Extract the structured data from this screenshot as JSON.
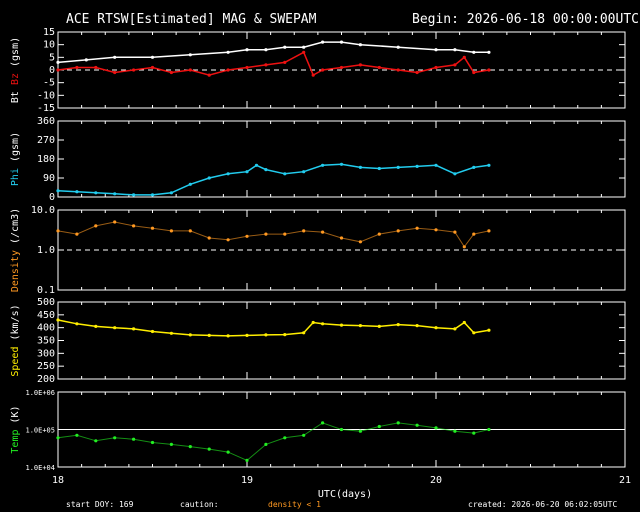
{
  "header": {
    "title": "ACE RTSW[Estimated] MAG & SWEPAM",
    "begin": "Begin: 2026-06-18 00:00:00UTC"
  },
  "footer": {
    "start_doy": "start DOY: 169",
    "caution": "caution:",
    "density_note": "density < 1",
    "created": "created: 2026-06-20 06:02:05UTC"
  },
  "colors": {
    "bt": "#ffffff",
    "bz": "#ee1111",
    "phi": "#22ccee",
    "density": "#ff9922",
    "speed": "#ffee00",
    "temp": "#22ee22",
    "axis": "#ffffff"
  },
  "chart_data": [
    {
      "type": "line",
      "panel": "mag",
      "ylabel_parts": [
        [
          "Bt ",
          "#ffffff"
        ],
        [
          "Bz",
          "#ee1111"
        ],
        [
          " (gsm)",
          "#ffffff"
        ]
      ],
      "ylim": [
        -15,
        15
      ],
      "yticks": [
        15,
        10,
        5,
        0,
        -5,
        -10,
        -15
      ],
      "reference_line": 0,
      "series": [
        {
          "name": "Bt",
          "color": "#ffffff",
          "x": [
            18.0,
            18.15,
            18.3,
            18.5,
            18.7,
            18.9,
            19.0,
            19.1,
            19.2,
            19.3,
            19.4,
            19.5,
            19.6,
            19.8,
            20.0,
            20.1,
            20.2,
            20.28
          ],
          "y": [
            3,
            4,
            5,
            5,
            6,
            7,
            8,
            8,
            9,
            9,
            11,
            11,
            10,
            9,
            8,
            8,
            7,
            7
          ]
        },
        {
          "name": "Bz",
          "color": "#ee1111",
          "x": [
            18.0,
            18.1,
            18.2,
            18.3,
            18.4,
            18.5,
            18.6,
            18.7,
            18.8,
            18.9,
            19.0,
            19.1,
            19.2,
            19.3,
            19.35,
            19.4,
            19.5,
            19.6,
            19.7,
            19.8,
            19.9,
            20.0,
            20.1,
            20.15,
            20.2,
            20.28
          ],
          "y": [
            0,
            1,
            1,
            -1,
            0,
            1,
            -1,
            0,
            -2,
            0,
            1,
            2,
            3,
            7,
            -2,
            0,
            1,
            2,
            1,
            0,
            -1,
            1,
            2,
            5,
            -1,
            0
          ]
        }
      ]
    },
    {
      "type": "line",
      "panel": "phi",
      "ylabel_parts": [
        [
          "Phi",
          "#22ccee"
        ],
        [
          " (gsm)",
          "#ffffff"
        ]
      ],
      "ylim": [
        0,
        360
      ],
      "yticks": [
        360,
        270,
        180,
        90,
        0
      ],
      "series": [
        {
          "name": "Phi",
          "color": "#22ccee",
          "x": [
            18.0,
            18.1,
            18.2,
            18.3,
            18.4,
            18.5,
            18.6,
            18.7,
            18.8,
            18.9,
            19.0,
            19.05,
            19.1,
            19.2,
            19.3,
            19.4,
            19.5,
            19.6,
            19.7,
            19.8,
            19.9,
            20.0,
            20.1,
            20.2,
            20.28
          ],
          "y": [
            30,
            25,
            20,
            15,
            10,
            10,
            20,
            60,
            90,
            110,
            120,
            150,
            130,
            110,
            120,
            150,
            155,
            140,
            135,
            140,
            145,
            150,
            110,
            140,
            150
          ]
        }
      ]
    },
    {
      "type": "scatter",
      "panel": "density",
      "ylabel_parts": [
        [
          "Density",
          "#ff9922"
        ],
        [
          " (/cm3)",
          "#ffffff"
        ]
      ],
      "ylim": [
        0.1,
        10.0
      ],
      "log": true,
      "yticks": [
        10.0,
        1.0,
        0.1
      ],
      "ytick_labels": [
        "10.0",
        "1.0",
        "0.1"
      ],
      "reference_line": 1.0,
      "series": [
        {
          "name": "Density",
          "color": "#ff9922",
          "x": [
            18.0,
            18.1,
            18.2,
            18.3,
            18.4,
            18.5,
            18.6,
            18.7,
            18.8,
            18.9,
            19.0,
            19.1,
            19.2,
            19.3,
            19.4,
            19.5,
            19.6,
            19.7,
            19.8,
            19.9,
            20.0,
            20.1,
            20.15,
            20.2,
            20.28
          ],
          "y": [
            3,
            2.5,
            4,
            5,
            4,
            3.5,
            3,
            3,
            2,
            1.8,
            2.2,
            2.5,
            2.5,
            3,
            2.8,
            2,
            1.6,
            2.5,
            3,
            3.5,
            3.2,
            2.8,
            1.2,
            2.5,
            3
          ]
        }
      ]
    },
    {
      "type": "line",
      "panel": "speed",
      "ylabel_parts": [
        [
          "Speed",
          "#ffee00"
        ],
        [
          " (km/s)",
          "#ffffff"
        ]
      ],
      "ylim": [
        200,
        500
      ],
      "yticks": [
        500,
        450,
        400,
        350,
        300,
        250,
        200
      ],
      "series": [
        {
          "name": "Speed",
          "color": "#ffee00",
          "x": [
            18.0,
            18.1,
            18.2,
            18.3,
            18.4,
            18.5,
            18.6,
            18.7,
            18.8,
            18.9,
            19.0,
            19.1,
            19.2,
            19.3,
            19.35,
            19.4,
            19.5,
            19.6,
            19.7,
            19.8,
            19.9,
            20.0,
            20.1,
            20.15,
            20.2,
            20.28
          ],
          "y": [
            430,
            415,
            405,
            400,
            395,
            385,
            378,
            372,
            370,
            368,
            370,
            372,
            373,
            380,
            420,
            415,
            410,
            408,
            405,
            412,
            408,
            400,
            395,
            420,
            380,
            390
          ]
        }
      ]
    },
    {
      "type": "scatter",
      "panel": "temp",
      "ylabel_parts": [
        [
          "Temp",
          "#22ee22"
        ],
        [
          " (K)",
          "#ffffff"
        ]
      ],
      "ylim": [
        10000,
        1000000
      ],
      "log": true,
      "yticks": [
        1000000,
        100000,
        10000
      ],
      "ytick_labels": [
        "1.0E+06",
        "1.0E+05",
        "1.0E+04"
      ],
      "reference_line": 100000,
      "series": [
        {
          "name": "Temp",
          "color": "#22ee22",
          "x": [
            18.0,
            18.1,
            18.2,
            18.3,
            18.4,
            18.5,
            18.6,
            18.7,
            18.8,
            18.9,
            19.0,
            19.1,
            19.2,
            19.3,
            19.4,
            19.5,
            19.6,
            19.7,
            19.8,
            19.9,
            20.0,
            20.1,
            20.2,
            20.28
          ],
          "y": [
            60000,
            70000,
            50000,
            60000,
            55000,
            45000,
            40000,
            35000,
            30000,
            25000,
            15000,
            40000,
            60000,
            70000,
            150000,
            100000,
            90000,
            120000,
            150000,
            130000,
            110000,
            90000,
            80000,
            100000
          ]
        }
      ]
    }
  ],
  "x_axis": {
    "xlim": [
      18,
      21
    ],
    "ticks": [
      18,
      19,
      20,
      21
    ],
    "tick_labels": [
      "18",
      "19",
      "20",
      "21"
    ],
    "label": "UTC(days)"
  }
}
